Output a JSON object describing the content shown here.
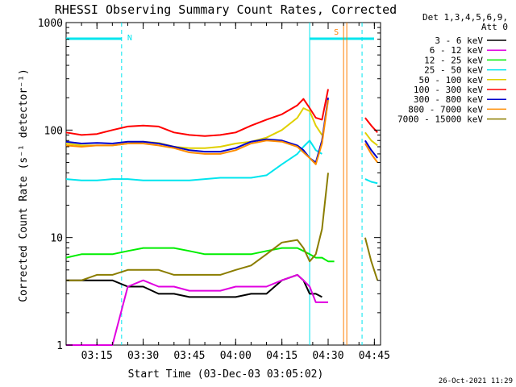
{
  "chart_data": {
    "type": "line",
    "title": "RHESSI Observing Summary Count Rates, Corrected",
    "xlabel": "Start Time (03-Dec-03 03:05:02)",
    "ylabel": "Corrected Count Rate (s⁻¹ detector⁻¹)",
    "yscale": "log",
    "ylim": [
      1,
      1000
    ],
    "xlim": [
      "03:05",
      "04:47"
    ],
    "y_ticks": [
      "1",
      "10",
      "100",
      "1000"
    ],
    "x_ticks": [
      "03:15",
      "03:30",
      "03:45",
      "04:00",
      "04:15",
      "04:30",
      "04:45"
    ],
    "legend_header": [
      "Det 1,3,4,5,6,9,",
      "Att 0"
    ],
    "legend_position": "right",
    "timestamp": "26-Oct-2021 11:29",
    "annotations": {
      "night_label": "N",
      "saa_label": "S",
      "night_start": "03:23",
      "saa_time": "04:35",
      "attenuator_times": [
        "04:24",
        "04:41"
      ],
      "bar_color": "#00e5ee",
      "saa_color": "#ff7f00"
    },
    "x": [
      "03:05",
      "03:10",
      "03:15",
      "03:20",
      "03:25",
      "03:30",
      "03:35",
      "03:40",
      "03:45",
      "03:50",
      "03:55",
      "04:00",
      "04:05",
      "04:10",
      "04:15",
      "04:20",
      "04:22",
      "04:24",
      "04:26",
      "04:28",
      "04:30",
      "04:32",
      "04:34",
      "04:36",
      "04:38",
      "04:40",
      "04:42",
      "04:44",
      "04:46"
    ],
    "series": [
      {
        "name": "3 - 6 keV",
        "color": "#000000",
        "values": [
          4,
          4,
          4,
          4,
          3.5,
          3.5,
          3,
          3,
          2.8,
          2.8,
          2.8,
          2.8,
          3,
          3,
          4,
          4.5,
          4,
          3,
          3,
          2.8,
          null,
          null,
          null,
          null,
          null,
          null,
          null,
          null,
          null
        ]
      },
      {
        "name": "6 - 12 keV",
        "color": "#e000e0",
        "values": [
          1,
          1,
          1,
          1,
          3.5,
          4,
          3.5,
          3.5,
          3.2,
          3.2,
          3.2,
          3.5,
          3.5,
          3.5,
          4,
          4.5,
          4,
          3.5,
          2.5,
          2.5,
          2.5,
          null,
          null,
          null,
          null,
          null,
          null,
          null,
          null
        ]
      },
      {
        "name": "12 - 25 keV",
        "color": "#00ee00",
        "values": [
          6.5,
          7,
          7,
          7,
          7.5,
          8,
          8,
          8,
          7.5,
          7,
          7,
          7,
          7,
          7.5,
          8,
          8,
          7.5,
          7,
          6.5,
          6.5,
          6,
          6,
          null,
          null,
          null,
          null,
          null,
          null,
          null
        ]
      },
      {
        "name": "25 - 50 keV",
        "color": "#00e5ee",
        "values": [
          35,
          34,
          34,
          35,
          35,
          34,
          34,
          34,
          34,
          35,
          36,
          36,
          36,
          38,
          48,
          60,
          70,
          80,
          65,
          60,
          null,
          null,
          null,
          null,
          null,
          null,
          35,
          33,
          32
        ]
      },
      {
        "name": "50 - 100 keV",
        "color": "#e0d000",
        "values": [
          75,
          72,
          72,
          72,
          75,
          78,
          76,
          70,
          68,
          68,
          70,
          75,
          78,
          85,
          100,
          130,
          160,
          150,
          110,
          90,
          null,
          null,
          null,
          null,
          null,
          null,
          95,
          80,
          72
        ]
      },
      {
        "name": "100 - 300 keV",
        "color": "#ff0000",
        "values": [
          95,
          90,
          92,
          100,
          108,
          110,
          108,
          95,
          90,
          88,
          90,
          95,
          110,
          125,
          140,
          170,
          195,
          160,
          130,
          125,
          240,
          null,
          null,
          null,
          null,
          null,
          130,
          110,
          95
        ]
      },
      {
        "name": "300 - 800 keV",
        "color": "#0000cc",
        "values": [
          78,
          75,
          76,
          75,
          78,
          78,
          75,
          70,
          65,
          63,
          63,
          68,
          78,
          82,
          80,
          72,
          65,
          55,
          50,
          80,
          200,
          null,
          null,
          null,
          null,
          null,
          80,
          65,
          55
        ]
      },
      {
        "name": "800 - 7000 keV",
        "color": "#ff8c00",
        "values": [
          72,
          70,
          72,
          72,
          75,
          75,
          72,
          68,
          62,
          60,
          60,
          65,
          75,
          80,
          78,
          70,
          62,
          55,
          48,
          75,
          190,
          null,
          null,
          null,
          null,
          null,
          75,
          60,
          50
        ]
      },
      {
        "name": "7000 - 15000 keV",
        "color": "#8b7d00",
        "values": [
          4,
          4,
          4.5,
          4.5,
          5,
          5,
          5,
          4.5,
          4.5,
          4.5,
          4.5,
          5,
          5.5,
          7,
          9,
          9.5,
          8,
          6,
          7,
          12,
          40,
          null,
          null,
          null,
          null,
          null,
          10,
          6,
          4
        ]
      }
    ]
  }
}
